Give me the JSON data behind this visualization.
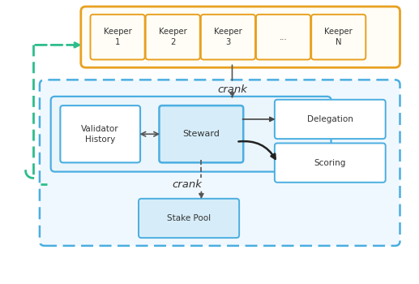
{
  "fig_width": 5.17,
  "fig_height": 3.5,
  "dpi": 100,
  "bg_color": "#ffffff",
  "orange_border": "#E8A020",
  "orange_fill": "#FFFDF5",
  "blue_border": "#4AAEE0",
  "blue_fill": "#F0F8FF",
  "blue_inner_fill": "#EBF5FC",
  "green_dashed": "#2DBD8C",
  "text_color": "#333333",
  "keeper_fill": "#FFFDF5",
  "steward_fill": "#D6EDF9",
  "vh_fill": "#FFFFFF",
  "deleg_fill": "#FFFFFF",
  "scoring_fill": "#FFFFFF",
  "stakepool_fill": "#D6EDF9",
  "keepers": [
    "Keeper\n1",
    "Keeper\n2",
    "Keeper\n3",
    "...",
    "Keeper\nN"
  ]
}
